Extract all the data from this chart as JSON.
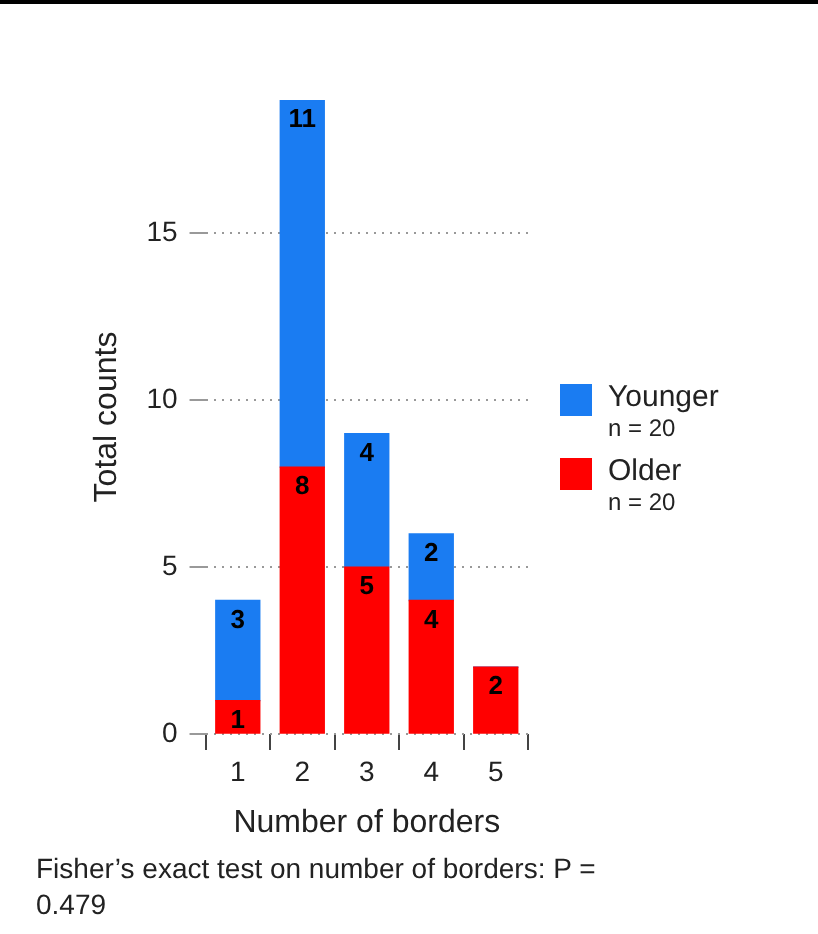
{
  "chart_data": {
    "type": "bar",
    "stacked": true,
    "xlabel": "Number of borders",
    "ylabel": "Total counts",
    "categories": [
      "1",
      "2",
      "3",
      "4",
      "5"
    ],
    "series": [
      {
        "name": "Older",
        "color": "#ff0000",
        "values": [
          1,
          8,
          5,
          4,
          2
        ],
        "value_labels": [
          "1",
          "8",
          "5",
          "4",
          "2"
        ]
      },
      {
        "name": "Younger",
        "color": "#1a7cf2",
        "values": [
          3,
          11,
          4,
          2,
          0
        ],
        "value_labels": [
          "3",
          "11",
          "4",
          "2",
          null
        ]
      }
    ],
    "ylim": [
      0,
      19
    ],
    "yticks": [
      0,
      5,
      10,
      15
    ],
    "grid": "y",
    "legend": "right",
    "annotations": [
      "n = 20",
      "n = 20",
      "Fisher’s exact test on number of borders: P = 0.479"
    ]
  }
}
